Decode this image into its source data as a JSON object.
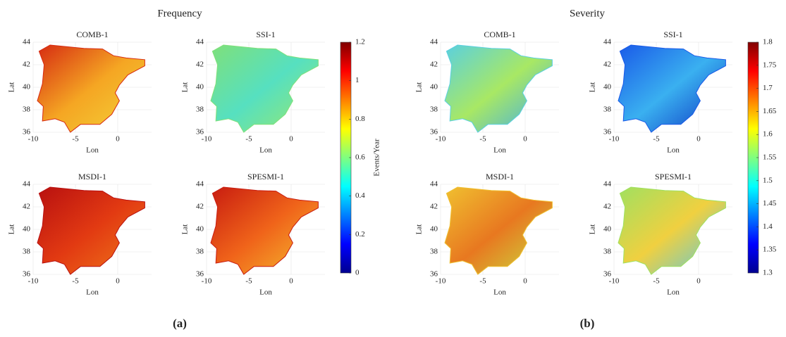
{
  "figures": [
    {
      "title": "Frequency",
      "panel_label": "(a)",
      "maps": [
        {
          "title": "COMB-1"
        },
        {
          "title": "SSI-1"
        },
        {
          "title": "MSDI-1"
        },
        {
          "title": "SPESMI-1"
        }
      ],
      "colorbar": {
        "label": "Events/Year",
        "lim": [
          0,
          1.2
        ],
        "ticks": [
          0,
          0.2,
          0.4,
          0.6,
          0.8,
          1,
          1.2
        ]
      }
    },
    {
      "title": "Severity",
      "panel_label": "(b)",
      "maps": [
        {
          "title": "COMB-1"
        },
        {
          "title": "SSI-1"
        },
        {
          "title": "MSDI-1"
        },
        {
          "title": "SPESMI-1"
        }
      ],
      "colorbar": {
        "lim": [
          1.3,
          1.8
        ],
        "ticks": [
          1.3,
          1.35,
          1.4,
          1.45,
          1.5,
          1.55,
          1.6,
          1.65,
          1.7,
          1.75,
          1.8
        ]
      }
    }
  ],
  "map_axes": {
    "xlabel": "Lon",
    "ylabel": "Lat",
    "xlim": [
      -10,
      4
    ],
    "ylim": [
      36,
      44
    ],
    "xticks": [
      -10,
      -5,
      0
    ],
    "yticks": [
      36,
      38,
      40,
      42,
      44
    ]
  }
}
